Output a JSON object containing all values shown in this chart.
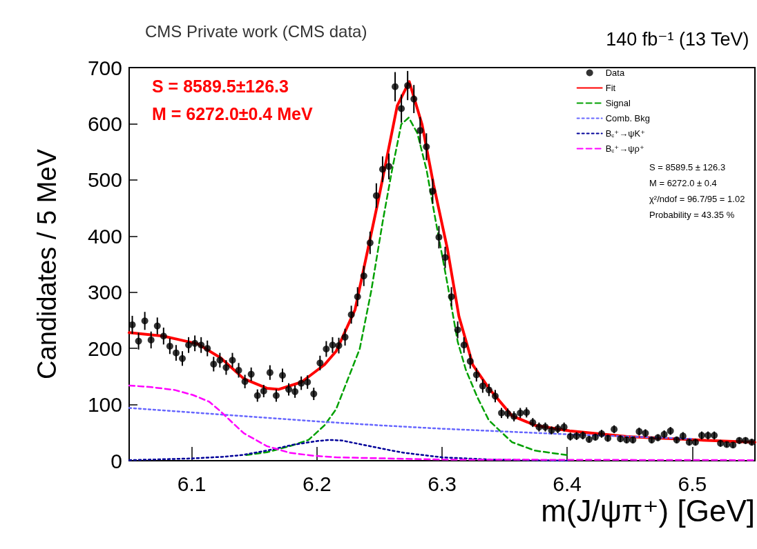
{
  "chart_data": {
    "type": "scatter",
    "title": "CMS Private work (CMS data)",
    "subtitle": "140 fb⁻¹ (13 TeV)",
    "xlabel": "m(J/ψπ⁺) [GeV]",
    "ylabel": "Candidates / 5 MeV",
    "xlim": [
      6.05,
      6.55
    ],
    "xticks": [
      6.1,
      6.2,
      6.3,
      6.4,
      6.5
    ],
    "ylim": [
      0,
      700
    ],
    "yticks": [
      0,
      100,
      200,
      300,
      400,
      500,
      600,
      700
    ],
    "grid": false,
    "legend": "top right",
    "annotations": [
      "S = 8589.5±126.3",
      "M = 6272.0±0.4 MeV",
      "S = 8589.5 ± 126.3",
      "M = 6272.0 ± 0.4",
      "χ²/ndof = 96.7/95 = 1.02",
      "Probability = 43.35 %"
    ],
    "series": [
      {
        "name": "Data",
        "marker": "circle",
        "color": "#000000",
        "x": [
          6.0525,
          6.0575,
          6.0625,
          6.0675,
          6.0725,
          6.0775,
          6.0825,
          6.0875,
          6.0925,
          6.0975,
          6.1025,
          6.1075,
          6.1125,
          6.1175,
          6.1225,
          6.1275,
          6.1325,
          6.1375,
          6.1425,
          6.1475,
          6.1525,
          6.1575,
          6.1625,
          6.1675,
          6.1725,
          6.1775,
          6.1825,
          6.1875,
          6.1925,
          6.1975,
          6.2025,
          6.2075,
          6.2125,
          6.2175,
          6.2225,
          6.2275,
          6.2325,
          6.2375,
          6.2425,
          6.2475,
          6.2525,
          6.2575,
          6.2625,
          6.2675,
          6.2725,
          6.2775,
          6.2825,
          6.2875,
          6.2925,
          6.2975,
          6.3025,
          6.3075,
          6.3125,
          6.3175,
          6.3225,
          6.3275,
          6.3325,
          6.3375,
          6.3425,
          6.3475,
          6.3525,
          6.3575,
          6.3625,
          6.3675,
          6.3725,
          6.3775,
          6.3825,
          6.3875,
          6.3925,
          6.3975,
          6.4025,
          6.4075,
          6.4125,
          6.4175,
          6.4225,
          6.4275,
          6.4325,
          6.4375,
          6.4425,
          6.4475,
          6.4525,
          6.4575,
          6.4625,
          6.4675,
          6.4725,
          6.4775,
          6.4825,
          6.4875,
          6.4925,
          6.4975,
          6.5025,
          6.5075,
          6.5125,
          6.5175,
          6.5225,
          6.5275,
          6.5325,
          6.5375,
          6.5425,
          6.5475
        ],
        "values": [
          242,
          213,
          249,
          215,
          240,
          222,
          204,
          192,
          182,
          206,
          209,
          206,
          200,
          172,
          179,
          166,
          179,
          161,
          141,
          154,
          116,
          124,
          157,
          116,
          152,
          127,
          123,
          138,
          140,
          119,
          174,
          199,
          206,
          205,
          220,
          260,
          292,
          329,
          388,
          472,
          519,
          524,
          666,
          627,
          668,
          644,
          588,
          559,
          480,
          398,
          362,
          292,
          233,
          206,
          177,
          153,
          133,
          126,
          115,
          85,
          84,
          79,
          85,
          86,
          68,
          60,
          60,
          54,
          57,
          60,
          43,
          44,
          45,
          38,
          42,
          48,
          40,
          56,
          39,
          37,
          37,
          52,
          49,
          37,
          41,
          47,
          53,
          37,
          44,
          33,
          33,
          45,
          45,
          45,
          31,
          29,
          28,
          36,
          36,
          33
        ],
        "errors": [
          16,
          15,
          16,
          15,
          15,
          15,
          14,
          14,
          13,
          14,
          14,
          14,
          14,
          13,
          13,
          13,
          13,
          13,
          12,
          12,
          11,
          11,
          13,
          11,
          12,
          11,
          11,
          12,
          12,
          11,
          13,
          14,
          14,
          14,
          15,
          16,
          17,
          18,
          20,
          22,
          23,
          23,
          26,
          25,
          26,
          25,
          24,
          24,
          22,
          20,
          19,
          17,
          15,
          14,
          13,
          12,
          12,
          11,
          11,
          9,
          9,
          9,
          9,
          9,
          8,
          8,
          8,
          7,
          8,
          8,
          7,
          7,
          7,
          6,
          6,
          7,
          6,
          7,
          6,
          6,
          6,
          7,
          7,
          6,
          6,
          7,
          7,
          6,
          7,
          6,
          6,
          7,
          7,
          7,
          6,
          5,
          5,
          6,
          6,
          6
        ]
      },
      {
        "name": "Fit",
        "type": "line",
        "color": "#ff0000",
        "line_style": "solid",
        "x": [
          6.05,
          6.0771,
          6.1048,
          6.1232,
          6.1416,
          6.16,
          6.1693,
          6.1877,
          6.2061,
          6.2154,
          6.2305,
          6.249,
          6.2642,
          6.2738,
          6.284,
          6.2932,
          6.3043,
          6.3135,
          6.321,
          6.3245,
          6.3374,
          6.3559,
          6.3743,
          6.402,
          6.448,
          6.5034,
          6.55
        ],
        "values": [
          228,
          222,
          208,
          183,
          146,
          129,
          127,
          140,
          171,
          195,
          269,
          463,
          632,
          675,
          599,
          492,
          377,
          257,
          199,
          171,
          129,
          80,
          63,
          53,
          43,
          37,
          33
        ]
      },
      {
        "name": "Signal",
        "type": "line",
        "color": "#00a000",
        "line_style": "dashed",
        "x": [
          6.1435,
          6.16,
          6.1785,
          6.1933,
          6.2061,
          6.2154,
          6.2342,
          6.2434,
          6.2526,
          6.26,
          6.2674,
          6.2734,
          6.2803,
          6.2877,
          6.295,
          6.3043,
          6.3125,
          6.319,
          6.3282,
          6.3374,
          6.3559,
          6.3743,
          6.4
        ],
        "values": [
          10,
          15,
          26,
          37,
          63,
          92,
          199,
          302,
          426,
          517,
          599,
          611,
          583,
          517,
          426,
          315,
          212,
          162,
          113,
          72,
          33,
          18,
          10
        ]
      },
      {
        "name": "Comb. Bkg",
        "type": "line",
        "color": "#6666ff",
        "line_style": "dotted",
        "x": [
          6.05,
          6.1,
          6.15,
          6.2,
          6.25,
          6.3,
          6.35,
          6.4,
          6.45,
          6.5
        ],
        "values": [
          94,
          86,
          78,
          70,
          63,
          57,
          52,
          47,
          43,
          39
        ]
      },
      {
        "name": "B$_{c}$⁺→ψK⁺",
        "type": "line",
        "color": "#000099",
        "line_style": "dotted",
        "x": [
          6.05,
          6.1,
          6.125,
          6.14,
          6.16,
          6.18,
          6.2,
          6.21,
          6.22,
          6.24,
          6.26,
          6.27,
          6.3,
          6.34,
          6.4
        ],
        "values": [
          1,
          4,
          7,
          10,
          18,
          28,
          35,
          37,
          36,
          27,
          18,
          14,
          6,
          2,
          0
        ]
      },
      {
        "name": "B$_{c}$⁺→ψρ⁺",
        "type": "line",
        "color": "#ff00ff",
        "line_style": "dashed",
        "x": [
          6.05,
          6.0677,
          6.0863,
          6.101,
          6.114,
          6.123,
          6.1324,
          6.1416,
          6.16,
          6.1785,
          6.197,
          6.2154,
          6.3,
          6.55
        ],
        "values": [
          134,
          131,
          126,
          117,
          105,
          88,
          68,
          49,
          26,
          14,
          9,
          6,
          2,
          1
        ]
      }
    ]
  }
}
